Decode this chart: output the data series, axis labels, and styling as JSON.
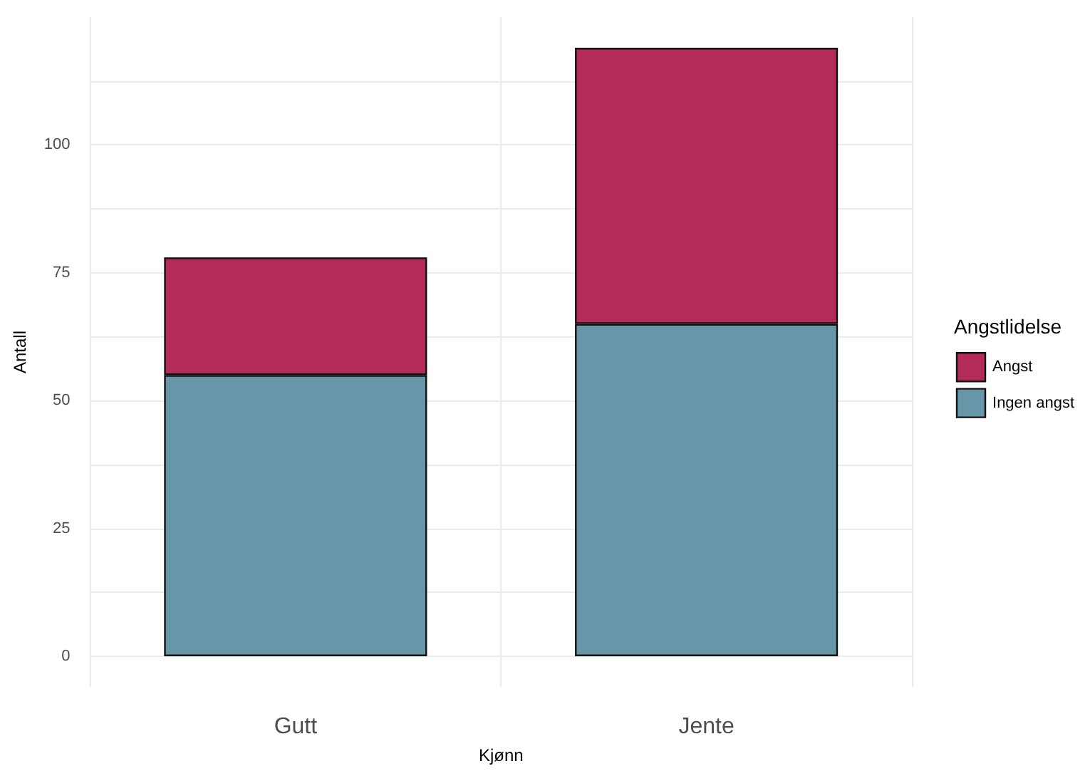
{
  "chart_data": {
    "type": "bar",
    "stacked": true,
    "xlabel": "Kjønn",
    "ylabel": "Antall",
    "legend_title": "Angstlidelse",
    "legend": "right",
    "categories": [
      "Gutt",
      "Jente"
    ],
    "series": [
      {
        "name": "Ingen angst",
        "color": "#6796a8",
        "values": [
          55,
          65
        ]
      },
      {
        "name": "Angst",
        "color": "#b22b5a",
        "values": [
          23,
          54
        ]
      }
    ],
    "ylim": [
      -6,
      125
    ],
    "yticks": [
      0,
      {
        "value": 12.5,
        "label": null
      },
      25,
      {
        "value": 37.5,
        "label": null
      },
      50,
      {
        "value": 62.5,
        "label": null
      },
      75,
      {
        "value": 87.5,
        "label": null
      },
      100,
      {
        "value": 112.5,
        "label": null
      }
    ],
    "grid": true
  }
}
